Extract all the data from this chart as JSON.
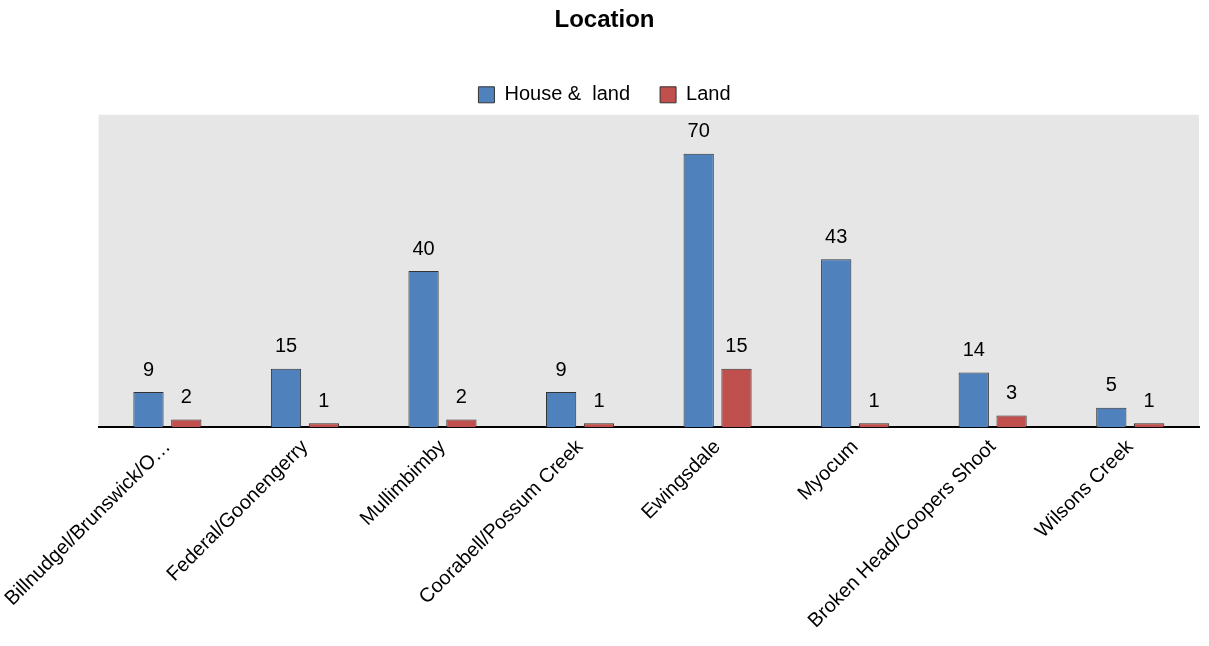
{
  "chart_data": {
    "type": "bar",
    "title": "Location",
    "categories": [
      "Billnudgel/Brunswick/O…",
      "Federal/Goonengerry",
      "Mullimbimby",
      "Coorabell/Possum Creek",
      "Ewingsdale",
      "Myocum",
      "Broken Head/Coopers Shoot",
      "Wilsons Creek"
    ],
    "series": [
      {
        "name": "House &  land",
        "color": "#4f81bd",
        "values": [
          9,
          15,
          40,
          9,
          70,
          43,
          14,
          5
        ]
      },
      {
        "name": "Land",
        "color": "#c0504d",
        "values": [
          2,
          1,
          2,
          1,
          15,
          1,
          3,
          1
        ]
      }
    ],
    "ylim": [
      0,
      80
    ],
    "tick_labels": "x",
    "data_labels": true,
    "grid": false,
    "legend": "top"
  }
}
